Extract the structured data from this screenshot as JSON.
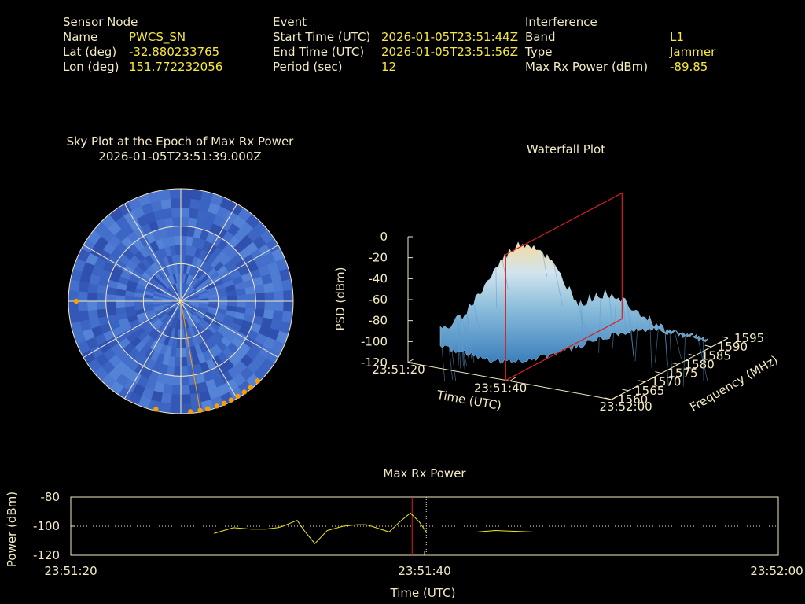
{
  "header": {
    "sensor": {
      "section": "Sensor Node",
      "name_label": "Name",
      "name_value": "PWCS_SN",
      "lat_label": "Lat (deg)",
      "lat_value": "-32.880233765",
      "lon_label": "Lon (deg)",
      "lon_value": "151.772232056"
    },
    "event": {
      "section": "Event",
      "start_label": "Start Time (UTC)",
      "start_value": "2026-01-05T23:51:44Z",
      "end_label": "End Time (UTC)",
      "end_value": "2026-01-05T23:51:56Z",
      "period_label": "Period (sec)",
      "period_value": "12"
    },
    "interference": {
      "section": "Interference",
      "band_label": "Band",
      "band_value": "L1",
      "type_label": "Type",
      "type_value": "Jammer",
      "power_label": "Max Rx Power (dBm)",
      "power_value": "-89.85"
    }
  },
  "colors": {
    "text": "#f4eac4",
    "value": "#f7e93a",
    "sky_base": "#3f6ac8",
    "satellite": "#ff9d00",
    "marker_red": "#d81f1f",
    "trace": "#f2ea20"
  },
  "chart_data": [
    {
      "type": "polar",
      "title": "Sky Plot at the Epoch of Max Rx Power",
      "subtitle": "2026-01-05T23:51:39.000Z",
      "elevation_rings": [
        0,
        30,
        60
      ],
      "azimuth_spokes": [
        0,
        30,
        60,
        90,
        120,
        150,
        180,
        210,
        240,
        270,
        300,
        330
      ],
      "satellites": [
        {
          "az": 270,
          "el": 5
        },
        {
          "az": 193,
          "el": 0
        },
        {
          "az": 175,
          "el": 0
        },
        {
          "az": 170,
          "el": 0
        },
        {
          "az": 166,
          "el": 0
        },
        {
          "az": 161,
          "el": 0
        },
        {
          "az": 157,
          "el": 0
        },
        {
          "az": 153,
          "el": 0
        },
        {
          "az": 149,
          "el": 0
        },
        {
          "az": 145,
          "el": 0
        },
        {
          "az": 141,
          "el": 0
        },
        {
          "az": 136,
          "el": 0
        }
      ],
      "pointer_azimuth": 170
    },
    {
      "type": "surface3d",
      "title": "Waterfall Plot",
      "zlabel": "PSD (dBm)",
      "xlabel": "Time (UTC)",
      "ylabel": "Frequency (MHz)",
      "zticks": [
        "0",
        "-20",
        "-40",
        "-60",
        "-80",
        "-100",
        "-120"
      ],
      "xticks": [
        "23:51:20",
        "23:51:40",
        "23:52:00"
      ],
      "yticks": [
        "1560",
        "1565",
        "1570",
        "1575",
        "1580",
        "1585",
        "1590",
        "1595"
      ],
      "zlim": [
        -120,
        0
      ],
      "ylim": [
        1560,
        1595
      ],
      "marker_time": "23:51:39"
    },
    {
      "type": "line",
      "title": "Max Rx Power",
      "xlabel": "Time (UTC)",
      "ylabel": "Power (dBm)",
      "yticks": [
        "-80",
        "-100",
        "-120"
      ],
      "xticks": [
        "23:51:20",
        "23:51:40",
        "23:52:00"
      ],
      "ylim": [
        -120,
        -80
      ],
      "xlim": [
        0,
        40
      ],
      "reference_line": -100,
      "event_marker_x": 19.3,
      "event_start_x": 20.1,
      "segments": [
        [
          [
            8.1,
            -105
          ],
          [
            9.2,
            -101
          ],
          [
            10.2,
            -102
          ],
          [
            11.0,
            -102
          ],
          [
            11.7,
            -101
          ],
          [
            12.0,
            -100
          ],
          [
            12.8,
            -96
          ],
          [
            13.2,
            -103
          ],
          [
            13.8,
            -112
          ],
          [
            14.5,
            -103
          ],
          [
            15.4,
            -100
          ],
          [
            16.2,
            -99
          ],
          [
            16.7,
            -99
          ],
          [
            17.0,
            -100
          ],
          [
            18.0,
            -104
          ],
          [
            18.6,
            -97
          ],
          [
            19.2,
            -91
          ],
          [
            19.7,
            -97
          ],
          [
            20.1,
            -104
          ]
        ],
        [
          [
            23.0,
            -104
          ],
          [
            24.0,
            -103
          ],
          [
            26.1,
            -104
          ]
        ]
      ]
    }
  ]
}
